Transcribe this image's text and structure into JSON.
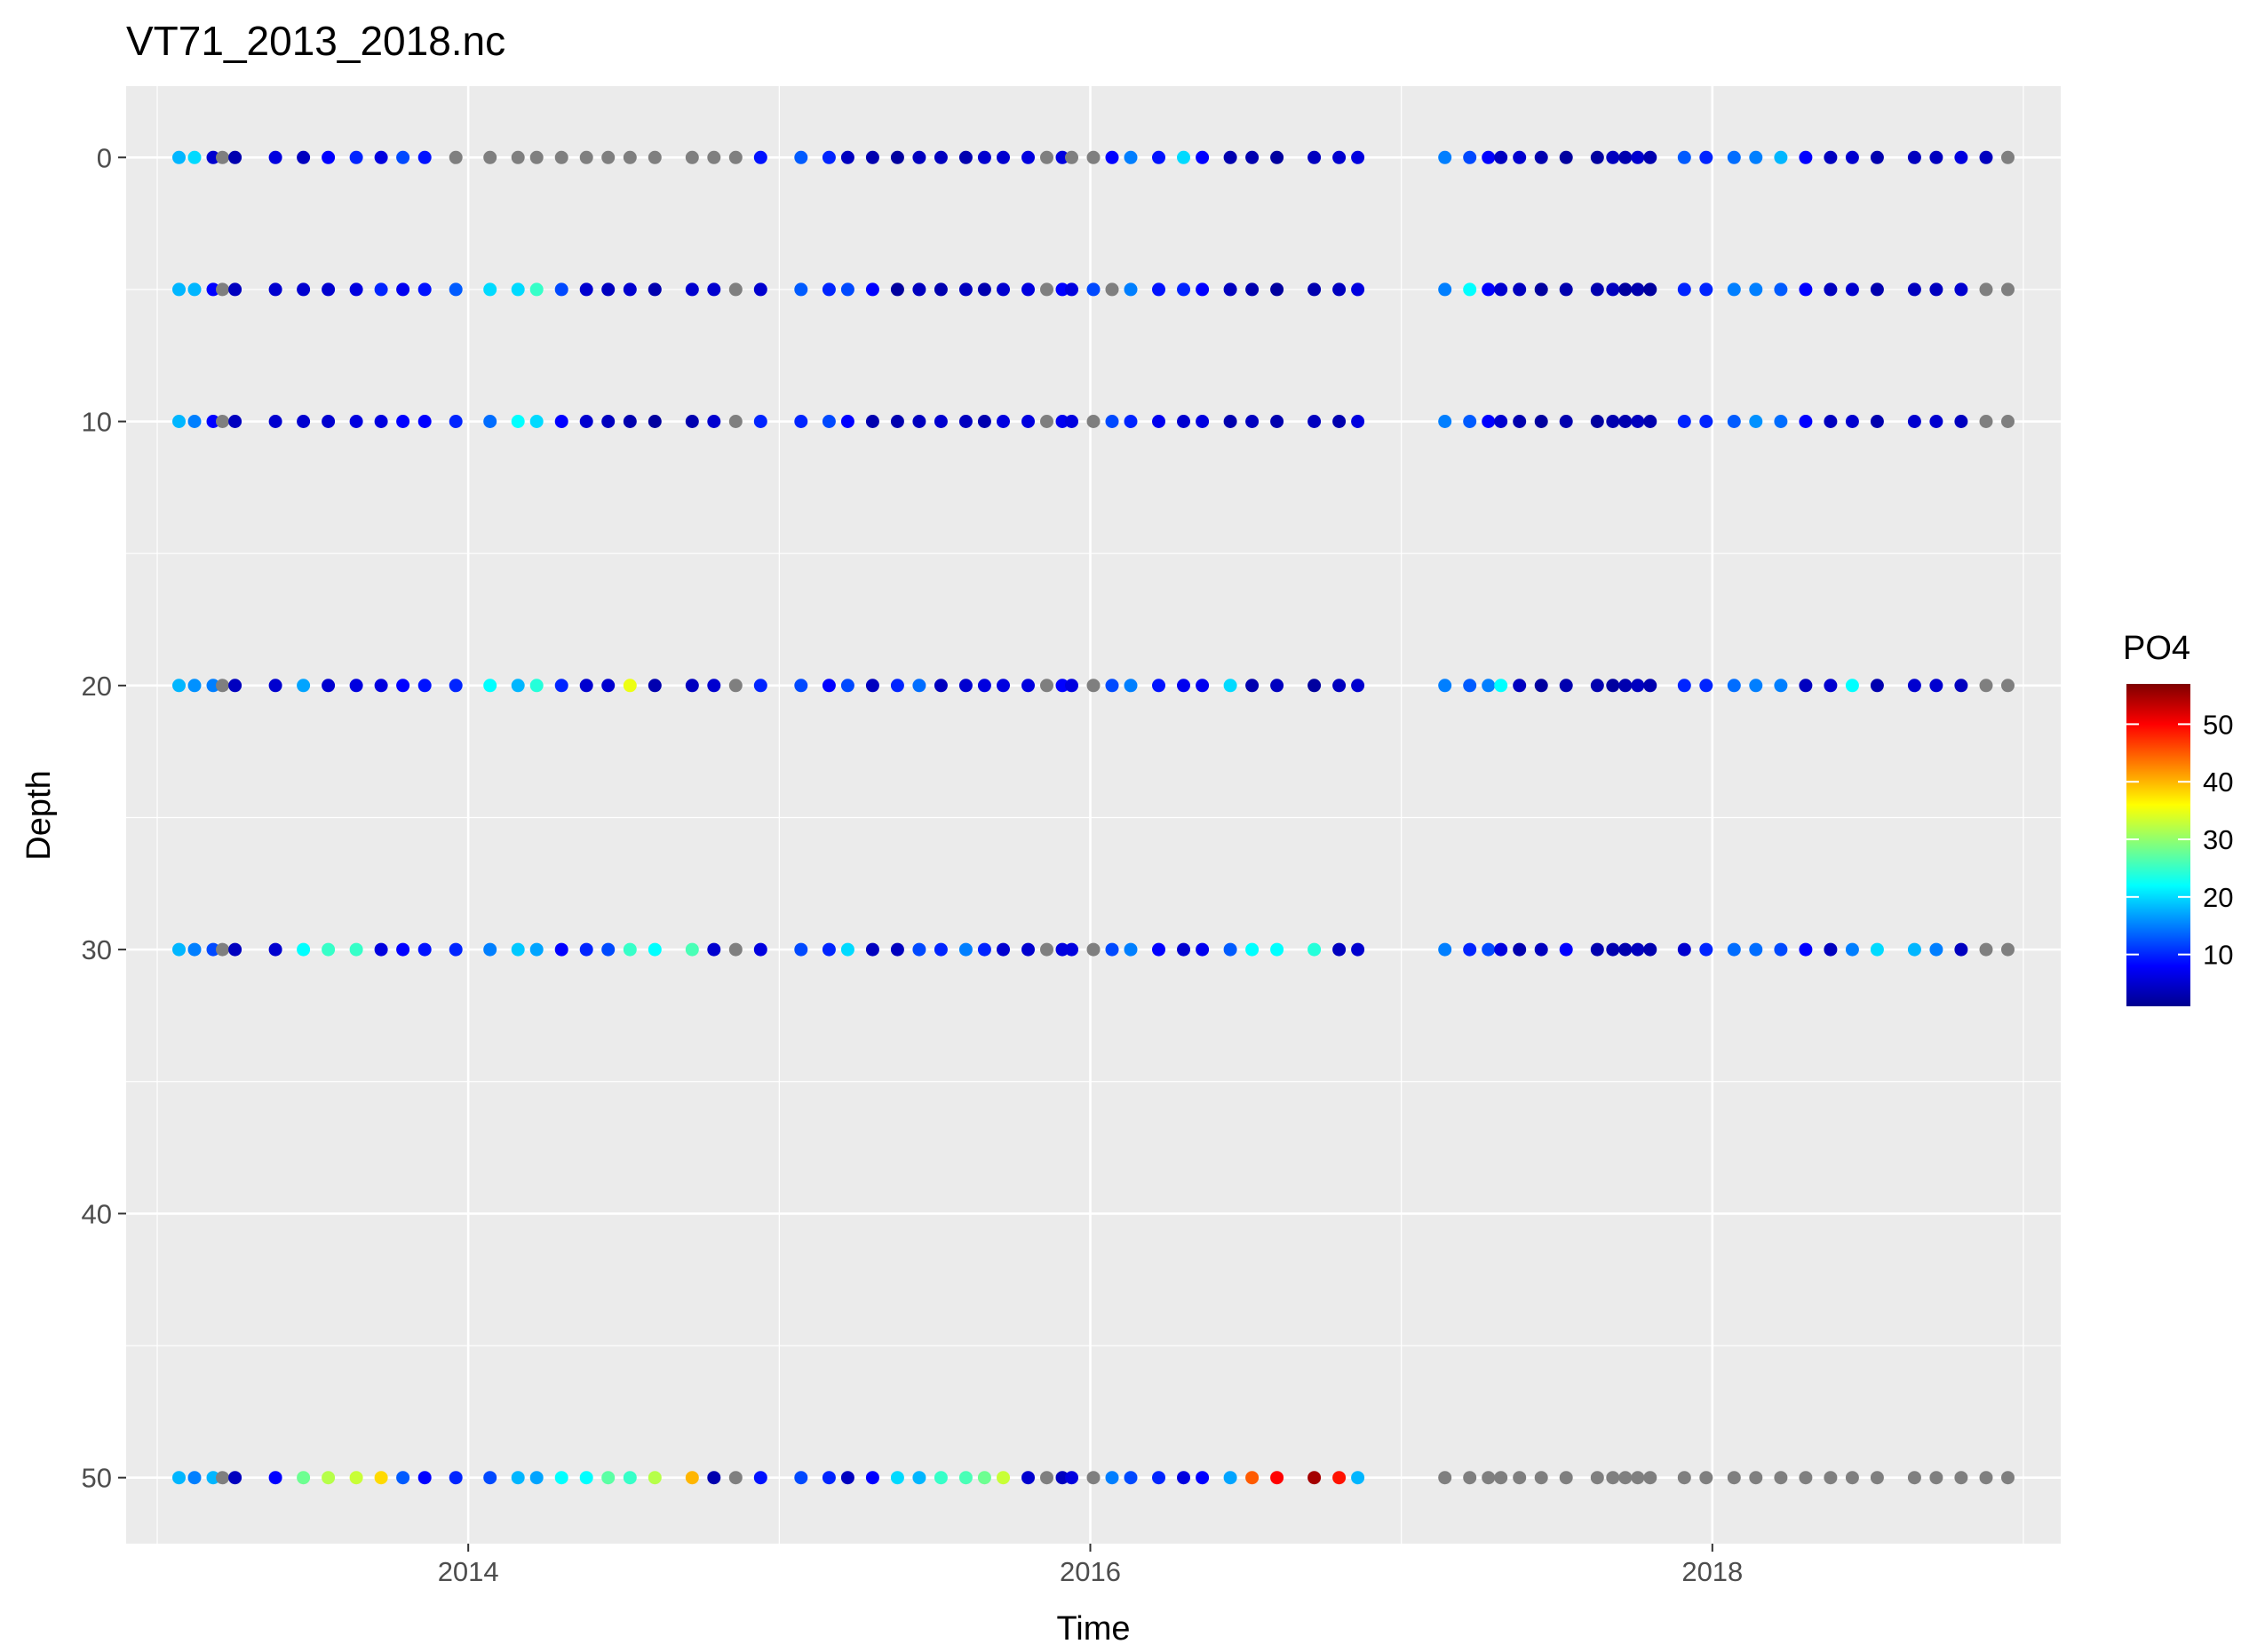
{
  "chart_data": {
    "type": "scatter",
    "title": "VT71_2013_2018.nc",
    "xlabel": "Time",
    "ylabel": "Depth",
    "xlim": [
      2012.9,
      2019.12
    ],
    "ylim": [
      -2.7,
      52.5
    ],
    "y_reversed": true,
    "x_ticks": [
      2014,
      2016,
      2018
    ],
    "x_tick_labels": [
      "2014",
      "2016",
      "2018"
    ],
    "y_ticks": [
      0,
      10,
      20,
      30,
      40,
      50
    ],
    "y_tick_labels": [
      "0",
      "10",
      "20",
      "30",
      "40",
      "50"
    ],
    "grid": true,
    "na_color": "#7f7f7f",
    "depths": [
      0,
      5,
      10,
      20,
      30,
      50
    ],
    "times": [
      2013.07,
      2013.12,
      2013.18,
      2013.21,
      2013.25,
      2013.38,
      2013.47,
      2013.55,
      2013.64,
      2013.72,
      2013.79,
      2013.86,
      2013.96,
      2014.07,
      2014.16,
      2014.22,
      2014.3,
      2014.38,
      2014.45,
      2014.52,
      2014.6,
      2014.72,
      2014.79,
      2014.86,
      2014.94,
      2015.07,
      2015.16,
      2015.22,
      2015.3,
      2015.38,
      2015.45,
      2015.52,
      2015.6,
      2015.66,
      2015.72,
      2015.8,
      2015.86,
      2015.91,
      2015.94,
      2016.01,
      2016.07,
      2016.13,
      2016.22,
      2016.3,
      2016.36,
      2016.45,
      2016.52,
      2016.6,
      2016.72,
      2016.8,
      2016.86,
      2017.14,
      2017.22,
      2017.28,
      2017.32,
      2017.38,
      2017.45,
      2017.53,
      2017.63,
      2017.68,
      2017.72,
      2017.76,
      2017.8,
      2017.91,
      2017.98,
      2018.07,
      2018.14,
      2018.22,
      2018.3,
      2018.38,
      2018.45,
      2018.53,
      2018.65,
      2018.72,
      2018.8,
      2018.88,
      2018.95
    ],
    "po4": {
      "0": [
        18,
        20,
        5,
        null,
        3,
        6,
        4,
        8,
        10,
        6,
        12,
        9,
        null,
        null,
        null,
        null,
        null,
        null,
        null,
        null,
        null,
        null,
        null,
        null,
        9,
        13,
        10,
        4,
        3,
        2,
        4,
        4,
        3,
        5,
        5,
        6,
        null,
        6,
        null,
        null,
        8,
        15,
        9,
        20,
        8,
        3,
        3,
        2,
        4,
        5,
        6,
        15,
        12,
        8,
        4,
        5,
        3,
        2,
        2,
        4,
        3,
        5,
        3,
        13,
        10,
        14,
        15,
        18,
        8,
        4,
        5,
        3,
        4,
        4,
        6,
        4,
        null
      ],
      "5": [
        18,
        18,
        8,
        null,
        4,
        5,
        5,
        5,
        6,
        10,
        7,
        9,
        13,
        20,
        20,
        25,
        12,
        5,
        4,
        5,
        3,
        5,
        5,
        null,
        5,
        13,
        10,
        12,
        8,
        2,
        4,
        3,
        4,
        3,
        5,
        6,
        null,
        8,
        6,
        12,
        null,
        15,
        9,
        10,
        8,
        4,
        3,
        2,
        3,
        4,
        6,
        15,
        22,
        8,
        5,
        4,
        2,
        3,
        3,
        4,
        2,
        3,
        2,
        10,
        10,
        15,
        15,
        13,
        8,
        4,
        5,
        3,
        4,
        4,
        5,
        null,
        null
      ],
      "10": [
        18,
        15,
        8,
        null,
        4,
        5,
        5,
        5,
        6,
        6,
        8,
        8,
        10,
        14,
        22,
        20,
        8,
        5,
        4,
        3,
        2,
        3,
        5,
        null,
        10,
        10,
        12,
        8,
        3,
        3,
        4,
        5,
        4,
        3,
        6,
        6,
        null,
        7,
        6,
        null,
        12,
        10,
        7,
        5,
        6,
        3,
        4,
        3,
        4,
        3,
        6,
        15,
        13,
        8,
        5,
        3,
        2,
        3,
        2,
        3,
        3,
        4,
        3,
        10,
        10,
        13,
        16,
        14,
        8,
        4,
        5,
        3,
        5,
        5,
        4,
        null,
        null
      ],
      "20": [
        18,
        16,
        15,
        null,
        4,
        5,
        17,
        5,
        6,
        6,
        8,
        9,
        10,
        22,
        18,
        24,
        10,
        5,
        5,
        35,
        3,
        4,
        5,
        null,
        10,
        12,
        8,
        12,
        4,
        10,
        14,
        4,
        5,
        6,
        6,
        6,
        null,
        8,
        6,
        null,
        12,
        15,
        9,
        7,
        7,
        20,
        3,
        4,
        2,
        4,
        5,
        15,
        13,
        15,
        22,
        4,
        2,
        3,
        3,
        2,
        3,
        4,
        3,
        10,
        10,
        14,
        15,
        15,
        4,
        5,
        22,
        3,
        5,
        5,
        4,
        null,
        null
      ],
      "30": [
        18,
        15,
        12,
        null,
        4,
        5,
        22,
        25,
        25,
        6,
        8,
        9,
        10,
        15,
        19,
        17,
        8,
        10,
        12,
        25,
        22,
        26,
        5,
        null,
        6,
        12,
        10,
        20,
        4,
        4,
        12,
        10,
        15,
        10,
        5,
        5,
        null,
        6,
        6,
        null,
        12,
        15,
        8,
        5,
        7,
        13,
        22,
        22,
        24,
        4,
        5,
        15,
        10,
        12,
        6,
        3,
        4,
        8,
        3,
        3,
        3,
        4,
        3,
        5,
        10,
        14,
        14,
        12,
        8,
        4,
        15,
        20,
        18,
        15,
        4,
        null,
        null
      ],
      "50": [
        18,
        15,
        18,
        null,
        4,
        8,
        28,
        32,
        33,
        38,
        13,
        8,
        10,
        12,
        18,
        17,
        22,
        22,
        27,
        25,
        32,
        40,
        3,
        null,
        9,
        12,
        10,
        4,
        8,
        20,
        18,
        25,
        26,
        28,
        33,
        5,
        null,
        4,
        6,
        null,
        15,
        12,
        10,
        6,
        8,
        17,
        45,
        50,
        55,
        49,
        18,
        null,
        null,
        null,
        null,
        null,
        null,
        null,
        null,
        null,
        null,
        null,
        null,
        null,
        null,
        null,
        null,
        null,
        null,
        null,
        null,
        null,
        null,
        null,
        null,
        null,
        null
      ]
    },
    "legend": {
      "title": "PO4",
      "placement": "right",
      "type": "colorbar",
      "range": [
        1,
        57
      ],
      "ticks": [
        10,
        20,
        30,
        40,
        50
      ],
      "tick_labels": [
        "10",
        "20",
        "30",
        "40",
        "50"
      ],
      "palette": [
        "#00008F",
        "#0000FF",
        "#007FFF",
        "#00FFFF",
        "#7FFF7F",
        "#FFFF00",
        "#FF7F00",
        "#FF0000",
        "#7F0000"
      ]
    }
  }
}
